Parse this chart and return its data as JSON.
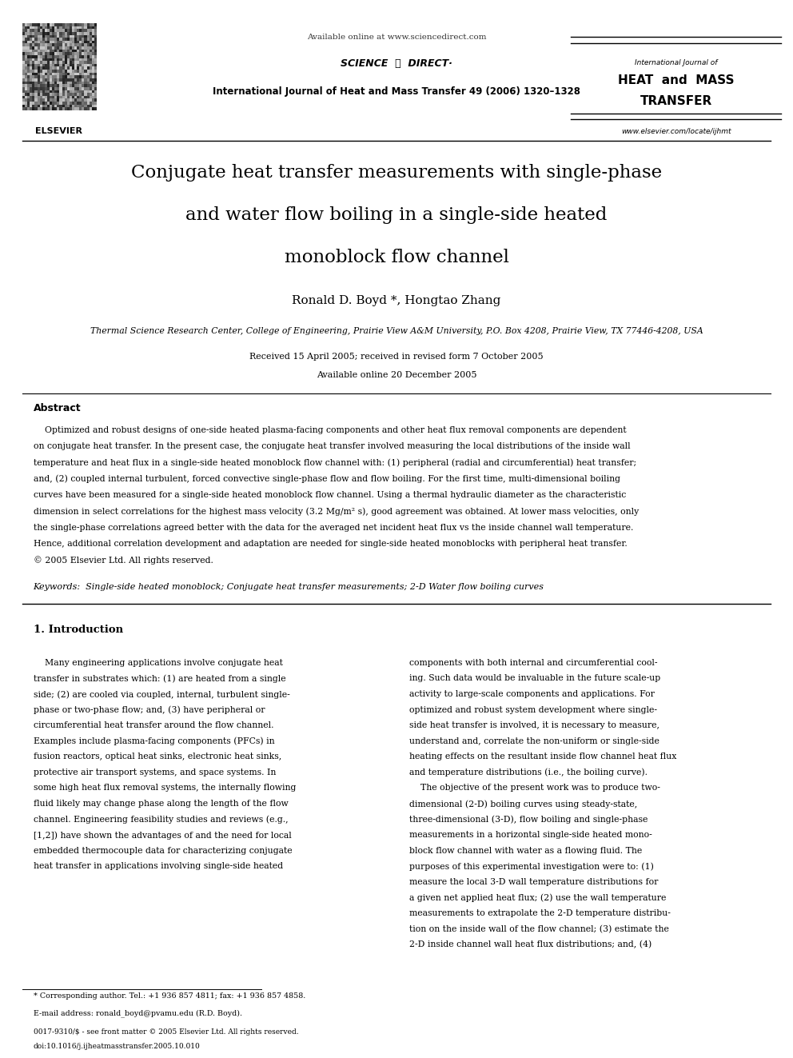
{
  "bg_color": "#ffffff",
  "page_width": 9.92,
  "page_height": 13.23,
  "header_available_online": "Available online at www.sciencedirect.com",
  "header_journal_line": "International Journal of Heat and Mass Transfer 49 (2006) 1320–1328",
  "header_journal_name_line1": "International Journal of",
  "header_journal_name_line2": "HEAT  and  MASS",
  "header_journal_name_line3": "TRANSFER",
  "header_journal_url": "www.elsevier.com/locate/ijhmt",
  "header_elsevier_label": "ELSEVIER",
  "title_line1": "Conjugate heat transfer measurements with single-phase",
  "title_line2": "and water flow boiling in a single-side heated",
  "title_line3": "monoblock flow channel",
  "authors": "Ronald D. Boyd *, Hongtao Zhang",
  "affiliation": "Thermal Science Research Center, College of Engineering, Prairie View A&M University, P.O. Box 4208, Prairie View, TX 77446-4208, USA",
  "received_line1": "Received 15 April 2005; received in revised form 7 October 2005",
  "received_line2": "Available online 20 December 2005",
  "abstract_label": "Abstract",
  "abstract_lines": [
    "    Optimized and robust designs of one-side heated plasma-facing components and other heat flux removal components are dependent",
    "on conjugate heat transfer. In the present case, the conjugate heat transfer involved measuring the local distributions of the inside wall",
    "temperature and heat flux in a single-side heated monoblock flow channel with: (1) peripheral (radial and circumferential) heat transfer;",
    "and, (2) coupled internal turbulent, forced convective single-phase flow and flow boiling. For the first time, multi-dimensional boiling",
    "curves have been measured for a single-side heated monoblock flow channel. Using a thermal hydraulic diameter as the characteristic",
    "dimension in select correlations for the highest mass velocity (3.2 Mg/m² s), good agreement was obtained. At lower mass velocities, only",
    "the single-phase correlations agreed better with the data for the averaged net incident heat flux vs the inside channel wall temperature.",
    "Hence, additional correlation development and adaptation are needed for single-side heated monoblocks with peripheral heat transfer.",
    "© 2005 Elsevier Ltd. All rights reserved."
  ],
  "keywords_label": "Keywords:",
  "keywords_text": "Single-side heated monoblock; Conjugate heat transfer measurements; 2-D Water flow boiling curves",
  "section1_title": "1. Introduction",
  "col1_lines": [
    "    Many engineering applications involve conjugate heat",
    "transfer in substrates which: (1) are heated from a single",
    "side; (2) are cooled via coupled, internal, turbulent single-",
    "phase or two-phase flow; and, (3) have peripheral or",
    "circumferential heat transfer around the flow channel.",
    "Examples include plasma-facing components (PFCs) in",
    "fusion reactors, optical heat sinks, electronic heat sinks,",
    "protective air transport systems, and space systems. In",
    "some high heat flux removal systems, the internally flowing",
    "fluid likely may change phase along the length of the flow",
    "channel. Engineering feasibility studies and reviews (e.g.,",
    "[1,2]) have shown the advantages of and the need for local",
    "embedded thermocouple data for characterizing conjugate",
    "heat transfer in applications involving single-side heated"
  ],
  "col2_lines": [
    "components with both internal and circumferential cool-",
    "ing. Such data would be invaluable in the future scale-up",
    "activity to large-scale components and applications. For",
    "optimized and robust system development where single-",
    "side heat transfer is involved, it is necessary to measure,",
    "understand and, correlate the non-uniform or single-side",
    "heating effects on the resultant inside flow channel heat flux",
    "and temperature distributions (i.e., the boiling curve).",
    "    The objective of the present work was to produce two-",
    "dimensional (2-D) boiling curves using steady-state,",
    "three-dimensional (3-D), flow boiling and single-phase",
    "measurements in a horizontal single-side heated mono-",
    "block flow channel with water as a flowing fluid. The",
    "purposes of this experimental investigation were to: (1)",
    "measure the local 3-D wall temperature distributions for",
    "a given net applied heat flux; (2) use the wall temperature",
    "measurements to extrapolate the 2-D temperature distribu-",
    "tion on the inside wall of the flow channel; (3) estimate the",
    "2-D inside channel wall heat flux distributions; and, (4)"
  ],
  "footnote_star": "* Corresponding author. Tel.: +1 936 857 4811; fax: +1 936 857 4858.",
  "footnote_email": "E-mail address: ronald_boyd@pvamu.edu (R.D. Boyd).",
  "footnote_issn": "0017-9310/$ - see front matter © 2005 Elsevier Ltd. All rights reserved.",
  "footnote_doi": "doi:10.1016/j.ijheatmasstransfer.2005.10.010"
}
